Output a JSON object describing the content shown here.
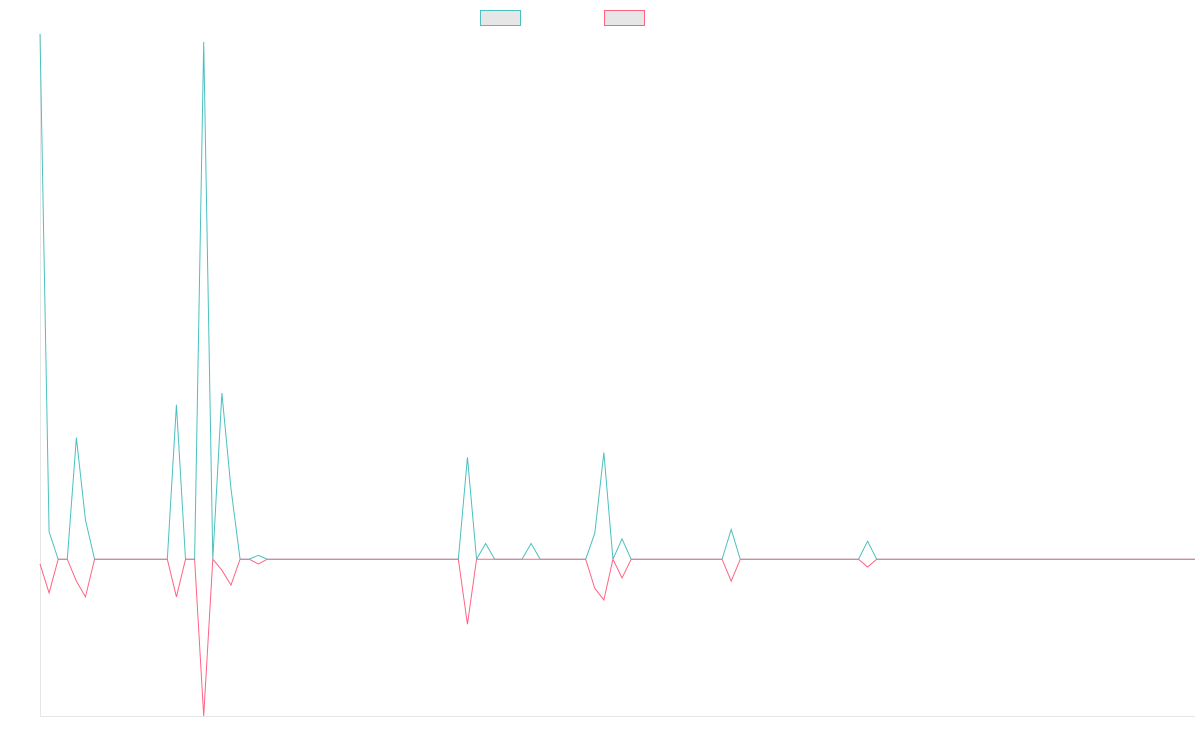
{
  "chart_data": {
    "type": "line",
    "title": "",
    "xlabel": "",
    "ylabel": "",
    "ylim": [
      -20,
      67
    ],
    "grid": false,
    "legend_position": "top-center",
    "x": [
      0,
      1,
      2,
      3,
      4,
      5,
      6,
      7,
      8,
      9,
      10,
      11,
      12,
      13,
      14,
      15,
      16,
      17,
      18,
      19,
      20,
      21,
      22,
      23,
      24,
      25,
      26,
      27,
      28,
      29,
      30,
      31,
      32,
      33,
      34,
      35,
      36,
      37,
      38,
      39,
      40,
      41,
      42,
      43,
      44,
      45,
      46,
      47,
      48,
      49,
      50,
      51,
      52,
      53,
      54,
      55,
      56,
      57,
      58,
      59,
      60,
      61,
      62,
      63,
      64,
      65,
      66,
      67,
      68,
      69,
      70,
      71,
      72,
      73,
      74,
      75,
      76,
      77,
      78,
      79,
      80,
      81,
      82,
      83,
      84,
      85,
      86,
      87,
      88,
      89,
      90,
      91,
      92,
      93,
      94,
      95,
      96,
      97,
      98,
      99,
      100,
      101,
      102,
      103,
      104,
      105,
      106,
      107,
      108,
      109,
      110,
      111,
      112,
      113,
      114,
      115,
      116,
      117,
      118,
      119,
      120,
      121,
      122,
      123,
      124,
      125,
      126,
      127
    ],
    "series": [
      {
        "name": "",
        "color": "#4bc0c0",
        "values": [
          67,
          3.5,
          0,
          0,
          15.5,
          5,
          0,
          0,
          0,
          0,
          0,
          0,
          0,
          0,
          0,
          19.7,
          0,
          0,
          66,
          0,
          21.2,
          9,
          0,
          0,
          0.5,
          0,
          0,
          0,
          0,
          0,
          0,
          0,
          0,
          0,
          0,
          0,
          0,
          0,
          0,
          0,
          0,
          0,
          0,
          0,
          0,
          0,
          0,
          13,
          0,
          2,
          0,
          0,
          0,
          0,
          2,
          0,
          0,
          0,
          0,
          0,
          0,
          3.3,
          13.6,
          0,
          2.6,
          0,
          0,
          0,
          0,
          0,
          0,
          0,
          0,
          0,
          0,
          0,
          3.8,
          0,
          0,
          0,
          0,
          0,
          0,
          0,
          0,
          0,
          0,
          0,
          0,
          0,
          0,
          2.3,
          0,
          0,
          0,
          0,
          0,
          0,
          0,
          0,
          0,
          0,
          0,
          0,
          0,
          0,
          0,
          0,
          0,
          0,
          0,
          0,
          0,
          0,
          0,
          0,
          0,
          0,
          0,
          0,
          0,
          0,
          0,
          0,
          0,
          0,
          0,
          0
        ]
      },
      {
        "name": "",
        "color": "#ff6384",
        "values": [
          -0.6,
          -4.3,
          0,
          0,
          -2.8,
          -4.8,
          0,
          0,
          0,
          0,
          0,
          0,
          0,
          0,
          0,
          -4.8,
          0,
          0,
          -20,
          0,
          -1.4,
          -3.3,
          0,
          0,
          -0.6,
          0,
          0,
          0,
          0,
          0,
          0,
          0,
          0,
          0,
          0,
          0,
          0,
          0,
          0,
          0,
          0,
          0,
          0,
          0,
          0,
          0,
          0,
          -8.3,
          0,
          0,
          0,
          0,
          0,
          0,
          0,
          0,
          0,
          0,
          0,
          0,
          0,
          -3.7,
          -5.2,
          0,
          -2.4,
          0,
          0,
          0,
          0,
          0,
          0,
          0,
          0,
          0,
          0,
          0,
          -2.8,
          0,
          0,
          0,
          0,
          0,
          0,
          0,
          0,
          0,
          0,
          0,
          0,
          0,
          0,
          -1,
          0,
          0,
          0,
          0,
          0,
          0,
          0,
          0,
          0,
          0,
          0,
          0,
          0,
          0,
          0,
          0,
          0,
          0,
          0,
          0,
          0,
          0,
          0,
          0,
          0,
          0,
          0,
          0,
          0,
          0,
          0,
          0,
          0,
          0,
          0,
          0
        ]
      }
    ]
  }
}
